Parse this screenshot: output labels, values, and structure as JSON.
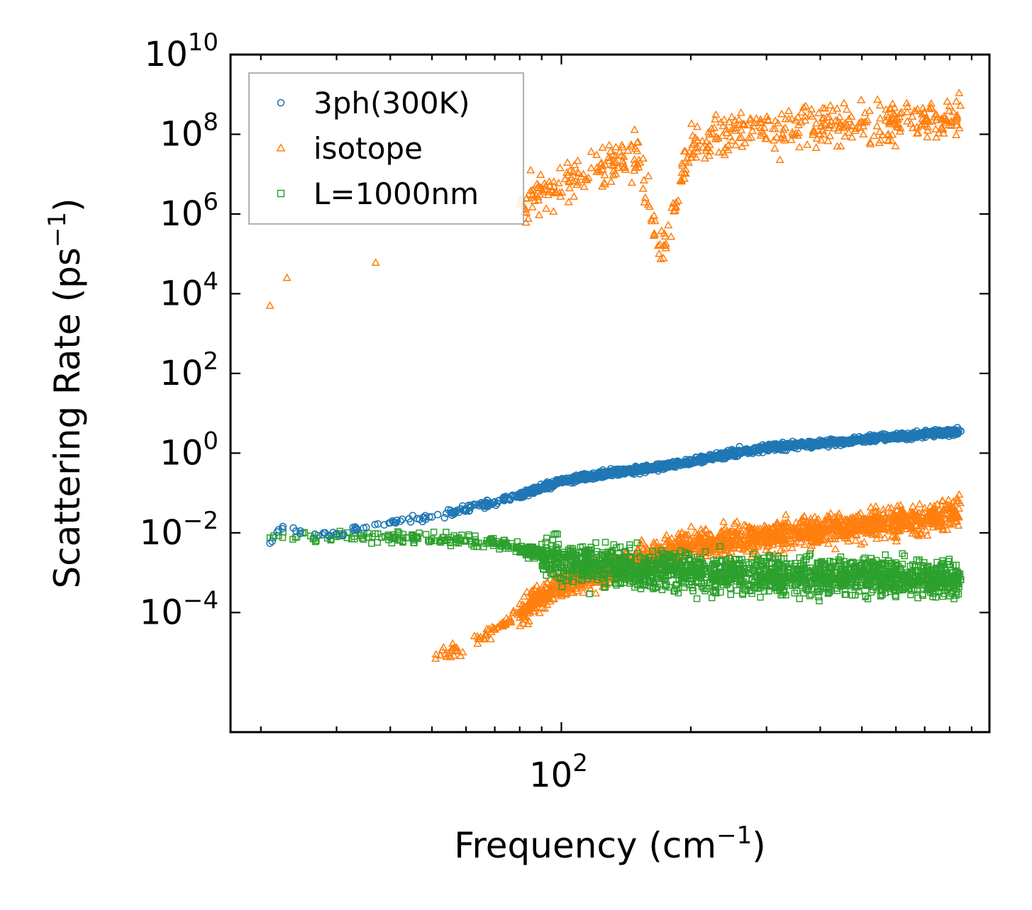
{
  "chart_data": {
    "type": "scatter",
    "title": "",
    "xlabel": "Frequency (cm",
    "xlabel_sup": "−1",
    "xlabel_end": ")",
    "ylabel": "Scattering Rate (ps",
    "ylabel_sup": "−1",
    "ylabel_end": ")",
    "xscale": "log",
    "yscale": "log",
    "xlim": [
      17,
      990
    ],
    "ylim": [
      1e-07,
      10000000000
    ],
    "x_tick_labels": [
      {
        "base": "10",
        "exp": "2",
        "value": 100
      }
    ],
    "y_tick_labels": [
      {
        "base": "10",
        "exp": "10",
        "value": 10000000000
      },
      {
        "base": "10",
        "exp": "8",
        "value": 100000000
      },
      {
        "base": "10",
        "exp": "6",
        "value": 1000000
      },
      {
        "base": "10",
        "exp": "4",
        "value": 10000
      },
      {
        "base": "10",
        "exp": "2",
        "value": 100
      },
      {
        "base": "10",
        "exp": "0",
        "value": 1
      },
      {
        "base": "10",
        "exp": "−2",
        "value": 0.01
      },
      {
        "base": "10",
        "exp": "−4",
        "value": 0.0001
      }
    ],
    "legend_position": "top-left",
    "series": [
      {
        "name": "3ph(300K)",
        "marker": "circle",
        "color": "#1f77b4",
        "anchor_points": [
          [
            21,
            0.0055
          ],
          [
            22,
            0.012
          ],
          [
            30,
            0.0095
          ],
          [
            40,
            0.018
          ],
          [
            50,
            0.025
          ],
          [
            60,
            0.04
          ],
          [
            70,
            0.06
          ],
          [
            80,
            0.09
          ],
          [
            100,
            0.2
          ],
          [
            130,
            0.32
          ],
          [
            170,
            0.45
          ],
          [
            200,
            0.6
          ],
          [
            250,
            1.0
          ],
          [
            300,
            1.4
          ],
          [
            400,
            1.7
          ],
          [
            500,
            2.2
          ],
          [
            600,
            2.6
          ],
          [
            700,
            3.0
          ],
          [
            800,
            3.4
          ],
          [
            850,
            3.5
          ]
        ],
        "point_count": 1500
      },
      {
        "name": "isotope",
        "marker": "triangle",
        "color": "#ff7f0e",
        "high_branch_anchor_points": [
          [
            21,
            5000
          ],
          [
            23,
            25000
          ],
          [
            37,
            60000
          ],
          [
            80,
            2000000
          ],
          [
            90,
            3000000
          ],
          [
            110,
            10000000
          ],
          [
            150,
            30000000
          ],
          [
            170,
            100000
          ],
          [
            200,
            60000000
          ],
          [
            250,
            100000000
          ],
          [
            300,
            150000000
          ],
          [
            400,
            180000000
          ],
          [
            600,
            200000000
          ],
          [
            850,
            250000000
          ]
        ],
        "low_branch_anchor_points": [
          [
            55,
            1e-05
          ],
          [
            60,
            1.5e-05
          ],
          [
            70,
            4e-05
          ],
          [
            80,
            0.0001
          ],
          [
            90,
            0.00025
          ],
          [
            100,
            0.0005
          ],
          [
            150,
            0.002
          ],
          [
            200,
            0.005
          ],
          [
            300,
            0.008
          ],
          [
            400,
            0.012
          ],
          [
            600,
            0.018
          ],
          [
            850,
            0.03
          ]
        ],
        "point_count": 2400
      },
      {
        "name": "L=1000nm",
        "marker": "square",
        "color": "#2ca02c",
        "anchor_points": [
          [
            21,
            0.0075
          ],
          [
            22,
            0.0085
          ],
          [
            30,
            0.008
          ],
          [
            40,
            0.0078
          ],
          [
            50,
            0.007
          ],
          [
            60,
            0.0065
          ],
          [
            70,
            0.006
          ],
          [
            80,
            0.004
          ],
          [
            90,
            0.003
          ],
          [
            100,
            0.002
          ],
          [
            150,
            0.0012
          ],
          [
            200,
            0.001
          ],
          [
            300,
            0.0009
          ],
          [
            500,
            0.0008
          ],
          [
            850,
            0.0007
          ]
        ],
        "point_count": 2000
      }
    ]
  }
}
